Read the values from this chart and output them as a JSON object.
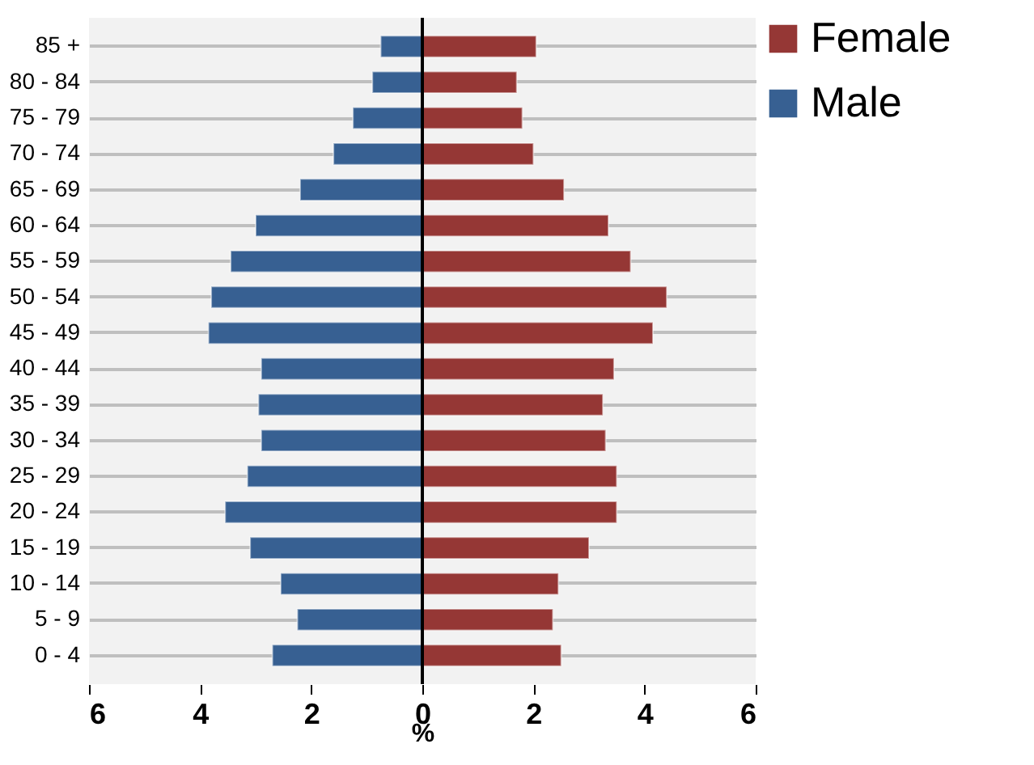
{
  "chart_data": {
    "type": "bar",
    "orientation": "horizontal",
    "xlabel": "%",
    "categories": [
      "85 +",
      "80 - 84",
      "75 - 79",
      "70 - 74",
      "65 - 69",
      "60 - 64",
      "55 - 59",
      "50 - 54",
      "45 - 49",
      "40 - 44",
      "35 - 39",
      "30 - 34",
      "25 - 29",
      "20 - 24",
      "15 - 19",
      "10 - 14",
      "5 - 9",
      "0 - 4"
    ],
    "series": [
      {
        "name": "Female",
        "color": "#953735",
        "values": [
          2.05,
          1.7,
          1.8,
          2.0,
          2.55,
          3.35,
          3.75,
          4.4,
          4.15,
          3.45,
          3.25,
          3.3,
          3.5,
          3.5,
          3.0,
          2.45,
          2.35,
          2.5
        ]
      },
      {
        "name": "Male",
        "color": "#376092",
        "values": [
          -0.75,
          -0.9,
          -1.25,
          -1.6,
          -2.2,
          -3.0,
          -3.45,
          -3.8,
          -3.85,
          -2.9,
          -2.95,
          -2.9,
          -3.15,
          -3.55,
          -3.1,
          -2.55,
          -2.25,
          -2.7
        ]
      }
    ],
    "xlim": [
      -6,
      6
    ],
    "xticks": [
      {
        "value": -6,
        "label": "6"
      },
      {
        "value": -4,
        "label": "4"
      },
      {
        "value": -2,
        "label": "2"
      },
      0,
      2,
      4,
      6
    ],
    "ref_lines": [
      {
        "axis": "x",
        "value": 0,
        "color": "#000000"
      }
    ],
    "grid": "y",
    "legend": "right",
    "stacked": true
  }
}
